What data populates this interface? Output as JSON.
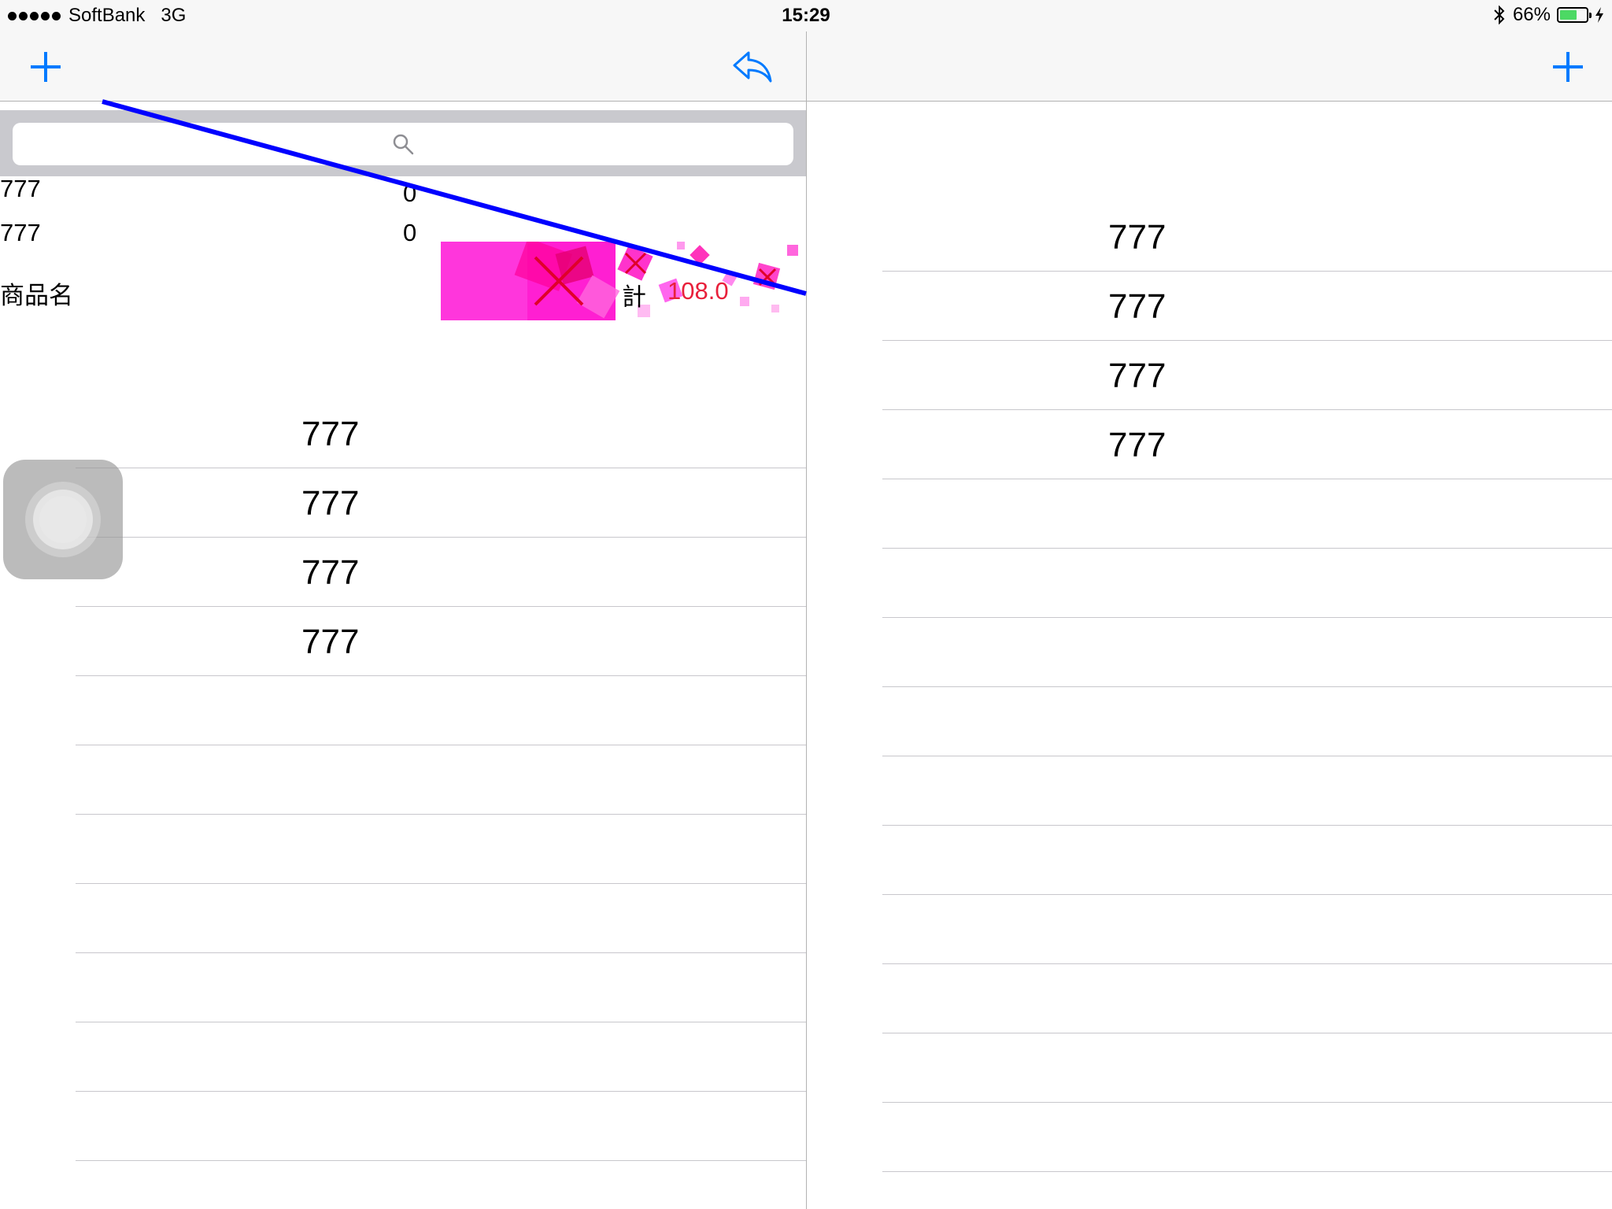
{
  "status_bar": {
    "carrier": "SoftBank",
    "network": "3G",
    "time": "15:29",
    "battery_percent": "66%",
    "battery_level": 0.66
  },
  "left_panel": {
    "rows_top": [
      {
        "name": "777",
        "value": "0"
      },
      {
        "name": "777",
        "value": "0"
      }
    ],
    "header_label": "商品名",
    "total_label": "計",
    "total_value": "108.0",
    "list_items": [
      "777",
      "777",
      "777",
      "777"
    ]
  },
  "right_panel": {
    "list_items": [
      "777",
      "777",
      "777",
      "777"
    ]
  },
  "colors": {
    "accent": "#007aff",
    "total": "#e8203a",
    "overlay_line": "#0000ff",
    "decor": "#ff00cc"
  },
  "icons": [
    "plus-icon",
    "reply-icon",
    "search-icon",
    "bluetooth-icon",
    "battery-icon",
    "charging-bolt-icon",
    "assistive-touch-icon"
  ]
}
